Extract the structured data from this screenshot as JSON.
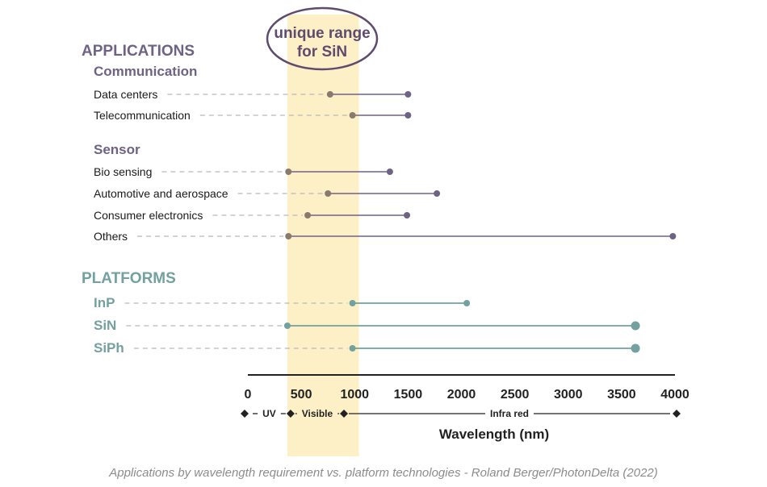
{
  "colors": {
    "applications": "#6e6285",
    "platforms": "#72a19f",
    "highlight": "#fdf0c6",
    "start_dot": "#8a7a6e",
    "axis": "#222222",
    "dashed": "#b9b9b9",
    "label": "#1a1a1a",
    "caption": "#8c8c8c",
    "oval": "#5e4b6e"
  },
  "caption": "Applications by wavelength requirement vs. platform technologies - Roland Berger/PhotonDelta (2022)",
  "chart_data": {
    "type": "range",
    "xlabel": "Wavelength (nm)",
    "xlim": [
      0,
      4000
    ],
    "xticks": [
      0,
      500,
      1000,
      1500,
      2000,
      2500,
      3000,
      3500,
      4000
    ],
    "highlight": {
      "label": "unique range for SiN",
      "label_lines": [
        "unique range",
        "for SiN"
      ],
      "range": [
        370,
        1040
      ]
    },
    "spectrum_bands": [
      {
        "label": "UV",
        "range": [
          0,
          400
        ]
      },
      {
        "label": "Visible",
        "range": [
          400,
          900
        ]
      },
      {
        "label": "Infra red",
        "range": [
          900,
          4000
        ]
      }
    ],
    "groups": [
      {
        "name": "APPLICATIONS",
        "subgroups": [
          {
            "name": "Communication",
            "rows": [
              {
                "label": "Data centers",
                "min": 770,
                "max": 1500
              },
              {
                "label": "Telecommunication",
                "min": 980,
                "max": 1500
              }
            ]
          },
          {
            "name": "Sensor",
            "rows": [
              {
                "label": "Bio sensing",
                "min": 380,
                "max": 1330
              },
              {
                "label": "Automotive and aerospace",
                "min": 750,
                "max": 1770
              },
              {
                "label": "Consumer electronics",
                "min": 560,
                "max": 1490
              },
              {
                "label": "Others",
                "min": 380,
                "max": 3980
              }
            ]
          }
        ]
      },
      {
        "name": "PLATFORMS",
        "subgroups": [
          {
            "name": "",
            "rows": [
              {
                "label": "InP",
                "min": 980,
                "max": 2050
              },
              {
                "label": "SiN",
                "min": 370,
                "max": 3630
              },
              {
                "label": "SiPh",
                "min": 980,
                "max": 3630
              }
            ]
          }
        ]
      }
    ]
  }
}
